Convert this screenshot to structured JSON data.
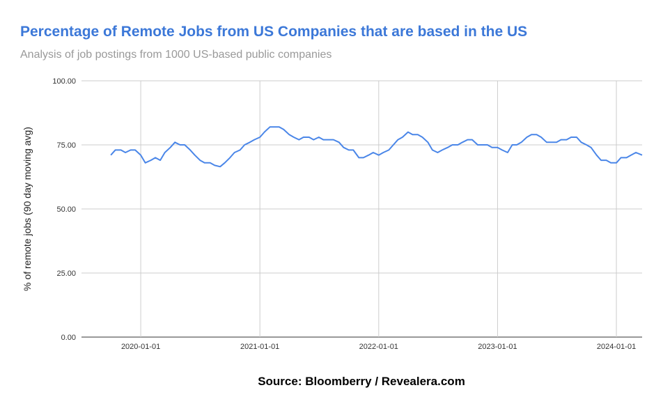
{
  "chart_data": {
    "type": "line",
    "title": "Percentage of Remote Jobs from US Companies that are based in the US",
    "subtitle": "Analysis of job postings from 1000 US-based public companies",
    "y_label": "% of remote jobs (90 day moving avg)",
    "source": "Source: Bloomberry / Revealera.com",
    "x": [
      "2019-10-01",
      "2019-10-15",
      "2019-11-01",
      "2019-11-15",
      "2019-12-01",
      "2019-12-15",
      "2020-01-01",
      "2020-01-15",
      "2020-02-01",
      "2020-02-15",
      "2020-03-01",
      "2020-03-15",
      "2020-04-01",
      "2020-04-15",
      "2020-05-01",
      "2020-05-15",
      "2020-06-01",
      "2020-06-15",
      "2020-07-01",
      "2020-07-15",
      "2020-08-01",
      "2020-08-15",
      "2020-09-01",
      "2020-09-15",
      "2020-10-01",
      "2020-10-15",
      "2020-11-01",
      "2020-11-15",
      "2020-12-01",
      "2020-12-15",
      "2021-01-01",
      "2021-01-15",
      "2021-02-01",
      "2021-02-15",
      "2021-03-01",
      "2021-03-15",
      "2021-04-01",
      "2021-04-15",
      "2021-05-01",
      "2021-05-15",
      "2021-06-01",
      "2021-06-15",
      "2021-07-01",
      "2021-07-15",
      "2021-08-01",
      "2021-08-15",
      "2021-09-01",
      "2021-09-15",
      "2021-10-01",
      "2021-10-15",
      "2021-11-01",
      "2021-11-15",
      "2021-12-01",
      "2021-12-15",
      "2022-01-01",
      "2022-01-15",
      "2022-02-01",
      "2022-02-15",
      "2022-03-01",
      "2022-03-15",
      "2022-04-01",
      "2022-04-15",
      "2022-05-01",
      "2022-05-15",
      "2022-06-01",
      "2022-06-15",
      "2022-07-01",
      "2022-07-15",
      "2022-08-01",
      "2022-08-15",
      "2022-09-01",
      "2022-09-15",
      "2022-10-01",
      "2022-10-15",
      "2022-11-01",
      "2022-11-15",
      "2022-12-01",
      "2022-12-15",
      "2023-01-01",
      "2023-01-15",
      "2023-02-01",
      "2023-02-15",
      "2023-03-01",
      "2023-03-15",
      "2023-04-01",
      "2023-04-15",
      "2023-05-01",
      "2023-05-15",
      "2023-06-01",
      "2023-06-15",
      "2023-07-01",
      "2023-07-15",
      "2023-08-01",
      "2023-08-15",
      "2023-09-01",
      "2023-09-15",
      "2023-10-01",
      "2023-10-15",
      "2023-11-01",
      "2023-11-15",
      "2023-12-01",
      "2023-12-15",
      "2024-01-01",
      "2024-01-15",
      "2024-02-01",
      "2024-02-15",
      "2024-03-01",
      "2024-03-20"
    ],
    "series": [
      {
        "color": "#4a86e8",
        "values": [
          71,
          73,
          73,
          72,
          73,
          73,
          71,
          68,
          69,
          70,
          69,
          72,
          74,
          76,
          75,
          75,
          73,
          71,
          69,
          68,
          68,
          67,
          66.5,
          68,
          70,
          72,
          73,
          75,
          76,
          77,
          78,
          80,
          82,
          82,
          82,
          81,
          79,
          78,
          77,
          78,
          78,
          77,
          78,
          77,
          77,
          77,
          76,
          74,
          73,
          73,
          70,
          70,
          71,
          72,
          71,
          72,
          73,
          75,
          77,
          78,
          80,
          79,
          79,
          78,
          76,
          73,
          72,
          73,
          74,
          75,
          75,
          76,
          77,
          77,
          75,
          75,
          75,
          74,
          74,
          73,
          72,
          75,
          75,
          76,
          78,
          79,
          79,
          78,
          76,
          76,
          76,
          77,
          77,
          78,
          78,
          76,
          75,
          74,
          71,
          69,
          69,
          68,
          68,
          70,
          70,
          71,
          72,
          71
        ]
      }
    ],
    "xlim": [
      "2019-07-03",
      "2024-03-20"
    ],
    "xticks": [
      "2020-01-01",
      "2021-01-01",
      "2022-01-01",
      "2023-01-01",
      "2024-01-01"
    ],
    "ylim": [
      0,
      100
    ],
    "yticks": [
      {
        "value": 0,
        "label": "0.00"
      },
      {
        "value": 25,
        "label": "25.00"
      },
      {
        "value": 50,
        "label": "50.00"
      },
      {
        "value": 75,
        "label": "75.00"
      },
      {
        "value": 100,
        "label": "100.00"
      }
    ],
    "grid": true
  }
}
